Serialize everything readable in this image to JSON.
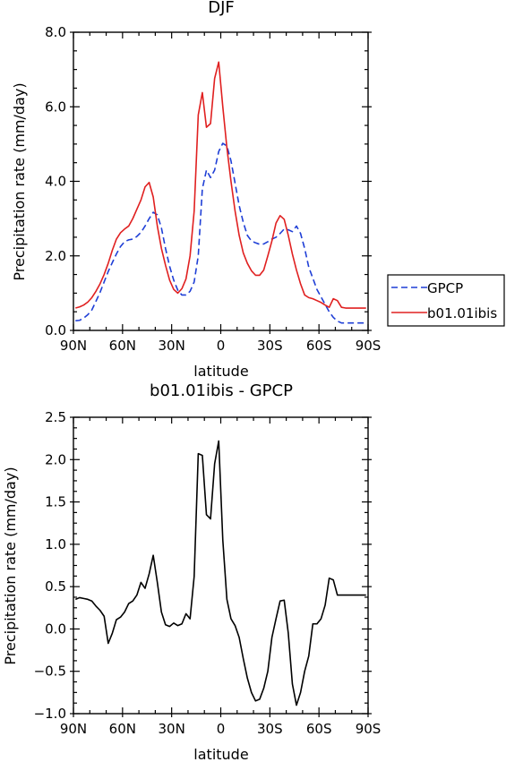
{
  "chart_data": [
    {
      "type": "line",
      "title": "DJF",
      "xlabel": "latitude",
      "ylabel": "Precipitation rate (mm/day)",
      "xlim": [
        90,
        -90
      ],
      "ylim": [
        0,
        8
      ],
      "xticks": [
        "90N",
        "60N",
        "30N",
        "0",
        "30S",
        "60S",
        "90S"
      ],
      "yticks": [
        "0.0",
        "2.0",
        "4.0",
        "6.0",
        "8.0"
      ],
      "legend": "right",
      "series": [
        {
          "name": "GPCP",
          "color": "#1f3fd6",
          "dash": "dashed",
          "x": [
            88.75,
            86.25,
            83.75,
            81.25,
            78.75,
            76.25,
            73.75,
            71.25,
            68.75,
            66.25,
            63.75,
            61.25,
            58.75,
            56.25,
            53.75,
            51.25,
            48.75,
            46.25,
            43.75,
            41.25,
            38.75,
            36.25,
            33.75,
            31.25,
            28.75,
            26.25,
            23.75,
            21.25,
            18.75,
            16.25,
            13.75,
            11.25,
            8.75,
            6.25,
            3.75,
            1.25,
            -1.25,
            -3.75,
            -6.25,
            -8.75,
            -11.25,
            -13.75,
            -16.25,
            -18.75,
            -21.25,
            -23.75,
            -26.25,
            -28.75,
            -31.25,
            -33.75,
            -36.25,
            -38.75,
            -41.25,
            -43.75,
            -46.25,
            -48.75,
            -51.25,
            -53.75,
            -56.25,
            -58.75,
            -61.25,
            -63.75,
            -66.25,
            -68.75,
            -71.25,
            -73.75,
            -76.25,
            -78.75,
            -81.25,
            -83.75,
            -86.25,
            -88.75
          ],
          "y": [
            0.26,
            0.27,
            0.33,
            0.42,
            0.55,
            0.78,
            1.02,
            1.3,
            1.58,
            1.82,
            2.05,
            2.25,
            2.38,
            2.43,
            2.45,
            2.52,
            2.63,
            2.8,
            3.0,
            3.17,
            3.1,
            2.75,
            2.2,
            1.72,
            1.35,
            1.08,
            0.95,
            0.95,
            1.05,
            1.3,
            2.0,
            3.8,
            4.3,
            4.1,
            4.3,
            4.8,
            5.02,
            4.95,
            4.55,
            3.95,
            3.35,
            2.9,
            2.55,
            2.4,
            2.35,
            2.31,
            2.32,
            2.38,
            2.45,
            2.5,
            2.6,
            2.72,
            2.7,
            2.65,
            2.8,
            2.6,
            2.2,
            1.7,
            1.4,
            1.1,
            0.9,
            0.7,
            0.5,
            0.35,
            0.25,
            0.2,
            0.2,
            0.2,
            0.2,
            0.2,
            0.2,
            0.2
          ]
        },
        {
          "name": "b01.01ibis",
          "color": "#e02020",
          "dash": "solid",
          "x": [
            88.75,
            86.25,
            83.75,
            81.25,
            78.75,
            76.25,
            73.75,
            71.25,
            68.75,
            66.25,
            63.75,
            61.25,
            58.75,
            56.25,
            53.75,
            51.25,
            48.75,
            46.25,
            43.75,
            41.25,
            38.75,
            36.25,
            33.75,
            31.25,
            28.75,
            26.25,
            23.75,
            21.25,
            18.75,
            16.25,
            13.75,
            11.25,
            8.75,
            6.25,
            3.75,
            1.25,
            -1.25,
            -3.75,
            -6.25,
            -8.75,
            -11.25,
            -13.75,
            -16.25,
            -18.75,
            -21.25,
            -23.75,
            -26.25,
            -28.75,
            -31.25,
            -33.75,
            -36.25,
            -38.75,
            -41.25,
            -43.75,
            -46.25,
            -48.75,
            -51.25,
            -53.75,
            -56.25,
            -58.75,
            -61.25,
            -63.75,
            -66.25,
            -68.75,
            -71.25,
            -73.75,
            -76.25,
            -78.75,
            -81.25,
            -83.75,
            -86.25,
            -88.75
          ],
          "y": [
            0.6,
            0.63,
            0.68,
            0.76,
            0.88,
            1.05,
            1.25,
            1.5,
            1.8,
            2.15,
            2.45,
            2.62,
            2.72,
            2.8,
            3.0,
            3.25,
            3.5,
            3.85,
            3.97,
            3.58,
            2.8,
            2.2,
            1.75,
            1.35,
            1.1,
            1.0,
            1.12,
            1.38,
            2.0,
            3.2,
            5.78,
            6.38,
            5.45,
            5.55,
            6.76,
            7.2,
            6.0,
            4.9,
            4.0,
            3.2,
            2.55,
            2.08,
            1.8,
            1.6,
            1.48,
            1.48,
            1.62,
            2.0,
            2.4,
            2.88,
            3.08,
            2.98,
            2.55,
            2.05,
            1.62,
            1.25,
            0.95,
            0.88,
            0.85,
            0.8,
            0.75,
            0.68,
            0.62,
            0.85,
            0.8,
            0.62,
            0.6,
            0.6,
            0.6,
            0.6,
            0.6,
            0.6
          ]
        }
      ]
    },
    {
      "type": "line",
      "title": "b01.01ibis - GPCP",
      "xlabel": "latitude",
      "ylabel": "Precipitation rate (mm/day)",
      "xlim": [
        90,
        -90
      ],
      "ylim": [
        -1.0,
        2.5
      ],
      "xticks": [
        "90N",
        "60N",
        "30N",
        "0",
        "30S",
        "60S",
        "90S"
      ],
      "yticks": [
        "−1.0",
        "−0.5",
        "0.0",
        "0.5",
        "1.0",
        "1.5",
        "2.0",
        "2.5"
      ],
      "series": [
        {
          "color": "#000000",
          "dash": "solid",
          "x": [
            88.75,
            86.25,
            83.75,
            81.25,
            78.75,
            76.25,
            73.75,
            71.25,
            68.75,
            66.25,
            63.75,
            61.25,
            58.75,
            56.25,
            53.75,
            51.25,
            48.75,
            46.25,
            43.75,
            41.25,
            38.75,
            36.25,
            33.75,
            31.25,
            28.75,
            26.25,
            23.75,
            21.25,
            18.75,
            16.25,
            13.75,
            11.25,
            8.75,
            6.25,
            3.75,
            1.25,
            -1.25,
            -3.75,
            -6.25,
            -8.75,
            -11.25,
            -13.75,
            -16.25,
            -18.75,
            -21.25,
            -23.75,
            -26.25,
            -28.75,
            -31.25,
            -33.75,
            -36.25,
            -38.75,
            -41.25,
            -43.75,
            -46.25,
            -48.75,
            -51.25,
            -53.75,
            -56.25,
            -58.75,
            -61.25,
            -63.75,
            -66.25,
            -68.75,
            -71.25,
            -73.75,
            -76.25,
            -78.75,
            -81.25,
            -83.75,
            -86.25,
            -88.75
          ],
          "y": [
            0.35,
            0.37,
            0.36,
            0.35,
            0.33,
            0.27,
            0.22,
            0.15,
            -0.17,
            -0.05,
            0.11,
            0.14,
            0.2,
            0.3,
            0.33,
            0.4,
            0.55,
            0.48,
            0.65,
            0.87,
            0.55,
            0.2,
            0.05,
            0.03,
            0.07,
            0.04,
            0.06,
            0.18,
            0.12,
            0.62,
            2.07,
            2.05,
            1.35,
            1.3,
            1.95,
            2.22,
            1.05,
            0.35,
            0.12,
            0.04,
            -0.1,
            -0.35,
            -0.58,
            -0.75,
            -0.85,
            -0.83,
            -0.7,
            -0.5,
            -0.1,
            0.12,
            0.33,
            0.34,
            -0.05,
            -0.65,
            -0.9,
            -0.75,
            -0.5,
            -0.32,
            0.06,
            0.06,
            0.12,
            0.28,
            0.6,
            0.58,
            0.4,
            0.4,
            0.4,
            0.4,
            0.4,
            0.4,
            0.4,
            0.4
          ]
        }
      ]
    }
  ]
}
